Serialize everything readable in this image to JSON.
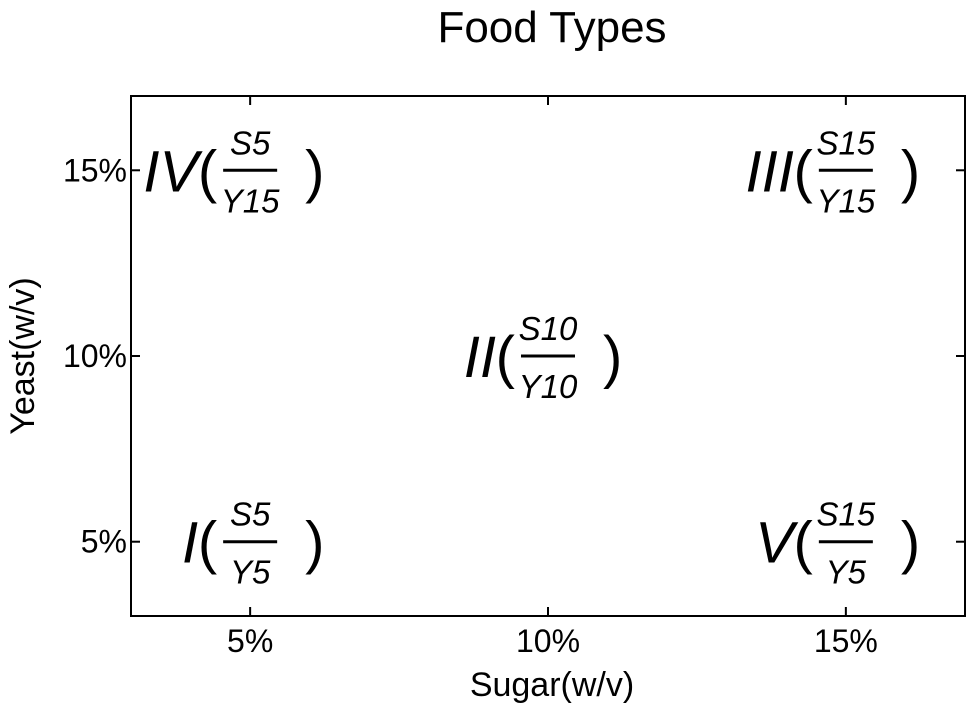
{
  "chart_data": {
    "type": "scatter",
    "title": "Food Types",
    "xlabel": "Sugar(w/v)",
    "ylabel": "Yeast(w/v)",
    "xlim": [
      3,
      17
    ],
    "ylim": [
      3,
      17
    ],
    "x_ticks": [
      {
        "value": 5,
        "label": "5%"
      },
      {
        "value": 10,
        "label": "10%"
      },
      {
        "value": 15,
        "label": "15%"
      }
    ],
    "y_ticks": [
      {
        "value": 5,
        "label": "5%"
      },
      {
        "value": 10,
        "label": "10%"
      },
      {
        "value": 15,
        "label": "15%"
      }
    ],
    "grid": false,
    "points": [
      {
        "x": 5,
        "y": 5,
        "roman": "I",
        "numerator": "S5",
        "denominator": "Y5"
      },
      {
        "x": 10,
        "y": 10,
        "roman": "II",
        "numerator": "S10",
        "denominator": "Y10"
      },
      {
        "x": 15,
        "y": 15,
        "roman": "III",
        "numerator": "S15",
        "denominator": "Y15"
      },
      {
        "x": 5,
        "y": 15,
        "roman": "IV",
        "numerator": "S5",
        "denominator": "Y15"
      },
      {
        "x": 15,
        "y": 5,
        "roman": "V",
        "numerator": "S15",
        "denominator": "Y5"
      }
    ]
  }
}
